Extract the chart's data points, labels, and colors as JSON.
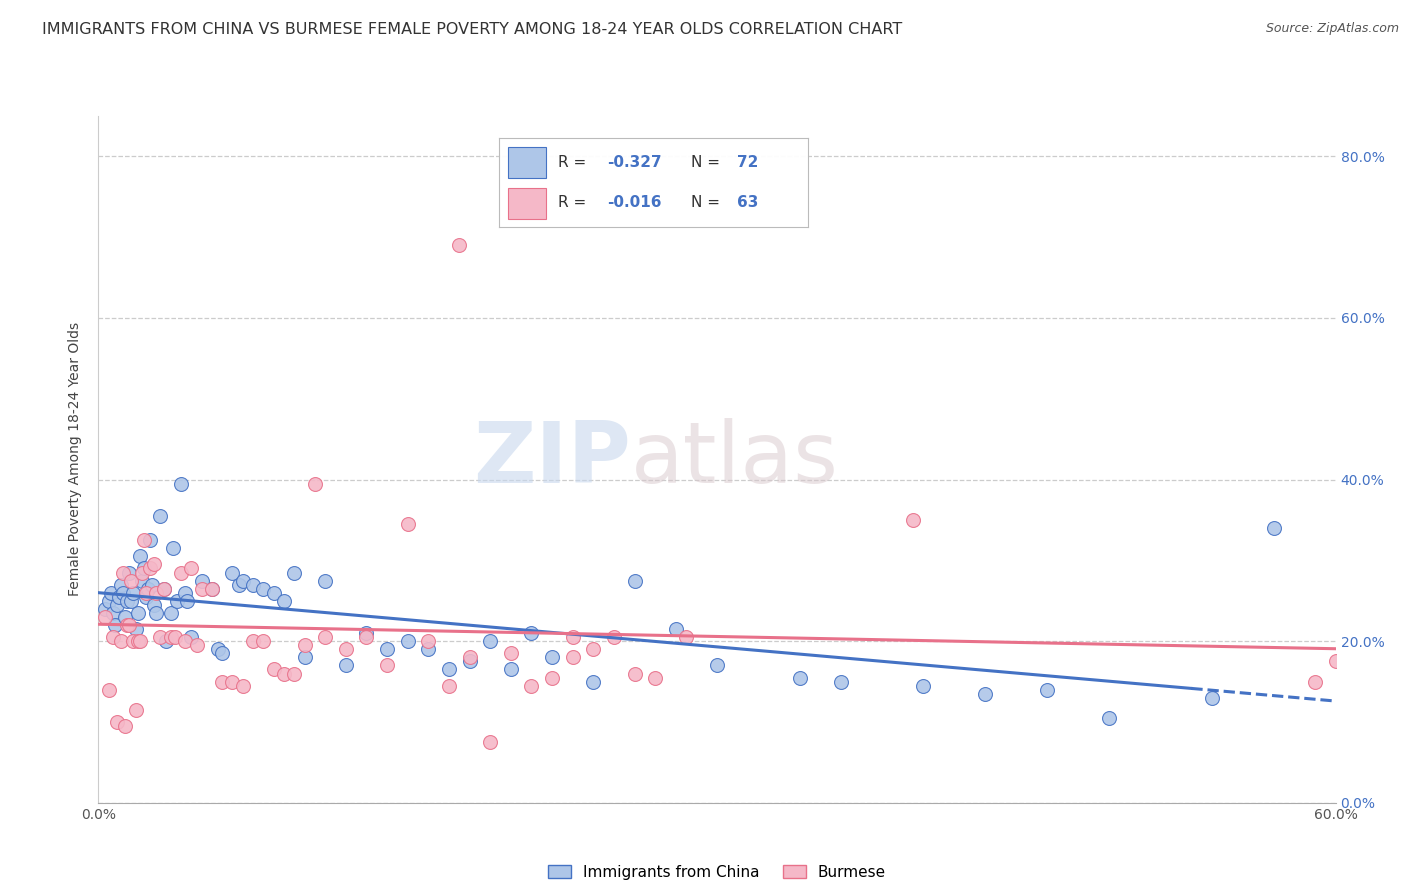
{
  "title": "IMMIGRANTS FROM CHINA VS BURMESE FEMALE POVERTY AMONG 18-24 YEAR OLDS CORRELATION CHART",
  "source": "Source: ZipAtlas.com",
  "ylabel": "Female Poverty Among 18-24 Year Olds",
  "xlim": [
    0.0,
    0.6
  ],
  "ylim": [
    0.0,
    0.85
  ],
  "xtick_vals": [
    0.0,
    0.1,
    0.2,
    0.3,
    0.4,
    0.5,
    0.6
  ],
  "ytick_vals": [
    0.0,
    0.2,
    0.4,
    0.6,
    0.8
  ],
  "legend_label1": "Immigrants from China",
  "legend_label2": "Burmese",
  "R1": -0.327,
  "N1": 72,
  "R2": -0.016,
  "N2": 63,
  "color_blue": "#aec6e8",
  "color_pink": "#f5b8c8",
  "color_blue_line": "#4472c4",
  "color_pink_line": "#e8718a",
  "watermark_zip": "ZIP",
  "watermark_atlas": "atlas",
  "title_fontsize": 11.5,
  "axis_label_fontsize": 10,
  "tick_fontsize": 10,
  "legend_fontsize": 11,
  "china_x": [
    0.003,
    0.005,
    0.006,
    0.007,
    0.008,
    0.009,
    0.01,
    0.011,
    0.012,
    0.013,
    0.014,
    0.015,
    0.016,
    0.017,
    0.018,
    0.019,
    0.02,
    0.021,
    0.022,
    0.023,
    0.024,
    0.025,
    0.026,
    0.027,
    0.028,
    0.03,
    0.032,
    0.033,
    0.035,
    0.036,
    0.038,
    0.04,
    0.042,
    0.043,
    0.045,
    0.05,
    0.055,
    0.058,
    0.06,
    0.065,
    0.068,
    0.07,
    0.075,
    0.08,
    0.085,
    0.09,
    0.095,
    0.1,
    0.11,
    0.12,
    0.13,
    0.14,
    0.15,
    0.16,
    0.17,
    0.18,
    0.19,
    0.2,
    0.21,
    0.22,
    0.24,
    0.26,
    0.28,
    0.3,
    0.34,
    0.36,
    0.4,
    0.43,
    0.46,
    0.49,
    0.54,
    0.57
  ],
  "china_y": [
    0.24,
    0.25,
    0.26,
    0.235,
    0.22,
    0.245,
    0.255,
    0.27,
    0.26,
    0.23,
    0.25,
    0.285,
    0.25,
    0.26,
    0.215,
    0.235,
    0.305,
    0.275,
    0.29,
    0.255,
    0.265,
    0.325,
    0.27,
    0.245,
    0.235,
    0.355,
    0.265,
    0.2,
    0.235,
    0.315,
    0.25,
    0.395,
    0.26,
    0.25,
    0.205,
    0.275,
    0.265,
    0.19,
    0.185,
    0.285,
    0.27,
    0.275,
    0.27,
    0.265,
    0.26,
    0.25,
    0.285,
    0.18,
    0.275,
    0.17,
    0.21,
    0.19,
    0.2,
    0.19,
    0.165,
    0.175,
    0.2,
    0.165,
    0.21,
    0.18,
    0.15,
    0.275,
    0.215,
    0.17,
    0.155,
    0.15,
    0.145,
    0.135,
    0.14,
    0.105,
    0.13,
    0.34
  ],
  "burm_x": [
    0.003,
    0.005,
    0.007,
    0.009,
    0.011,
    0.012,
    0.013,
    0.014,
    0.015,
    0.016,
    0.017,
    0.018,
    0.019,
    0.02,
    0.021,
    0.022,
    0.023,
    0.025,
    0.027,
    0.028,
    0.03,
    0.032,
    0.035,
    0.037,
    0.04,
    0.042,
    0.045,
    0.048,
    0.05,
    0.055,
    0.06,
    0.065,
    0.07,
    0.075,
    0.08,
    0.085,
    0.09,
    0.095,
    0.1,
    0.105,
    0.11,
    0.12,
    0.13,
    0.14,
    0.15,
    0.16,
    0.17,
    0.18,
    0.19,
    0.2,
    0.21,
    0.23,
    0.24,
    0.25,
    0.26,
    0.27,
    0.285,
    0.22,
    0.23,
    0.175,
    0.395,
    0.59,
    0.6
  ],
  "burm_y": [
    0.23,
    0.14,
    0.205,
    0.1,
    0.2,
    0.285,
    0.095,
    0.22,
    0.22,
    0.275,
    0.2,
    0.115,
    0.2,
    0.2,
    0.285,
    0.325,
    0.26,
    0.29,
    0.295,
    0.26,
    0.205,
    0.265,
    0.205,
    0.205,
    0.285,
    0.2,
    0.29,
    0.195,
    0.265,
    0.265,
    0.15,
    0.15,
    0.145,
    0.2,
    0.2,
    0.165,
    0.16,
    0.16,
    0.195,
    0.395,
    0.205,
    0.19,
    0.205,
    0.17,
    0.345,
    0.2,
    0.145,
    0.18,
    0.075,
    0.185,
    0.145,
    0.205,
    0.19,
    0.205,
    0.16,
    0.155,
    0.205,
    0.155,
    0.18,
    0.69,
    0.35,
    0.15,
    0.175
  ]
}
